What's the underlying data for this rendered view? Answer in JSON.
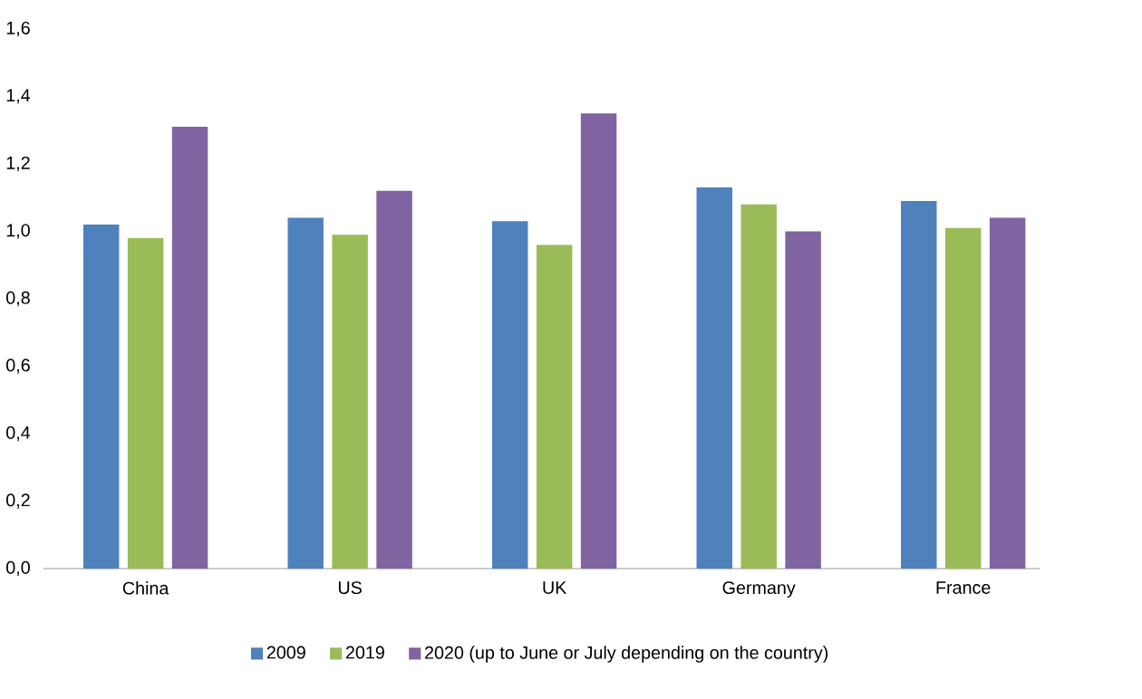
{
  "chart_data": {
    "type": "bar",
    "categories": [
      "China",
      "US",
      "UK",
      "Germany",
      "France"
    ],
    "series": [
      {
        "name": "2009",
        "color": "#4f81bd",
        "values": [
          1.02,
          1.04,
          1.03,
          1.13,
          1.09
        ]
      },
      {
        "name": "2019",
        "color": "#9bbb59",
        "values": [
          0.98,
          0.99,
          0.96,
          1.08,
          1.01
        ]
      },
      {
        "name": "2020 (up to June or July depending on the country)",
        "color": "#8064a2",
        "values": [
          1.31,
          1.12,
          1.35,
          1.0,
          1.04
        ]
      }
    ],
    "ylim": [
      0,
      1.6
    ],
    "yticks": [
      {
        "value": 0,
        "label": "0,0"
      },
      {
        "value": 0.2,
        "label": "0,2"
      },
      {
        "value": 0.4,
        "label": "0,4"
      },
      {
        "value": 0.6,
        "label": "0,6"
      },
      {
        "value": 0.8,
        "label": "0,8"
      },
      {
        "value": 1.0,
        "label": "1,0"
      },
      {
        "value": 1.2,
        "label": "1,2"
      },
      {
        "value": 1.4,
        "label": "1,4"
      },
      {
        "value": 1.6,
        "label": "1,6"
      }
    ],
    "grid": false,
    "legend": "bottom"
  }
}
